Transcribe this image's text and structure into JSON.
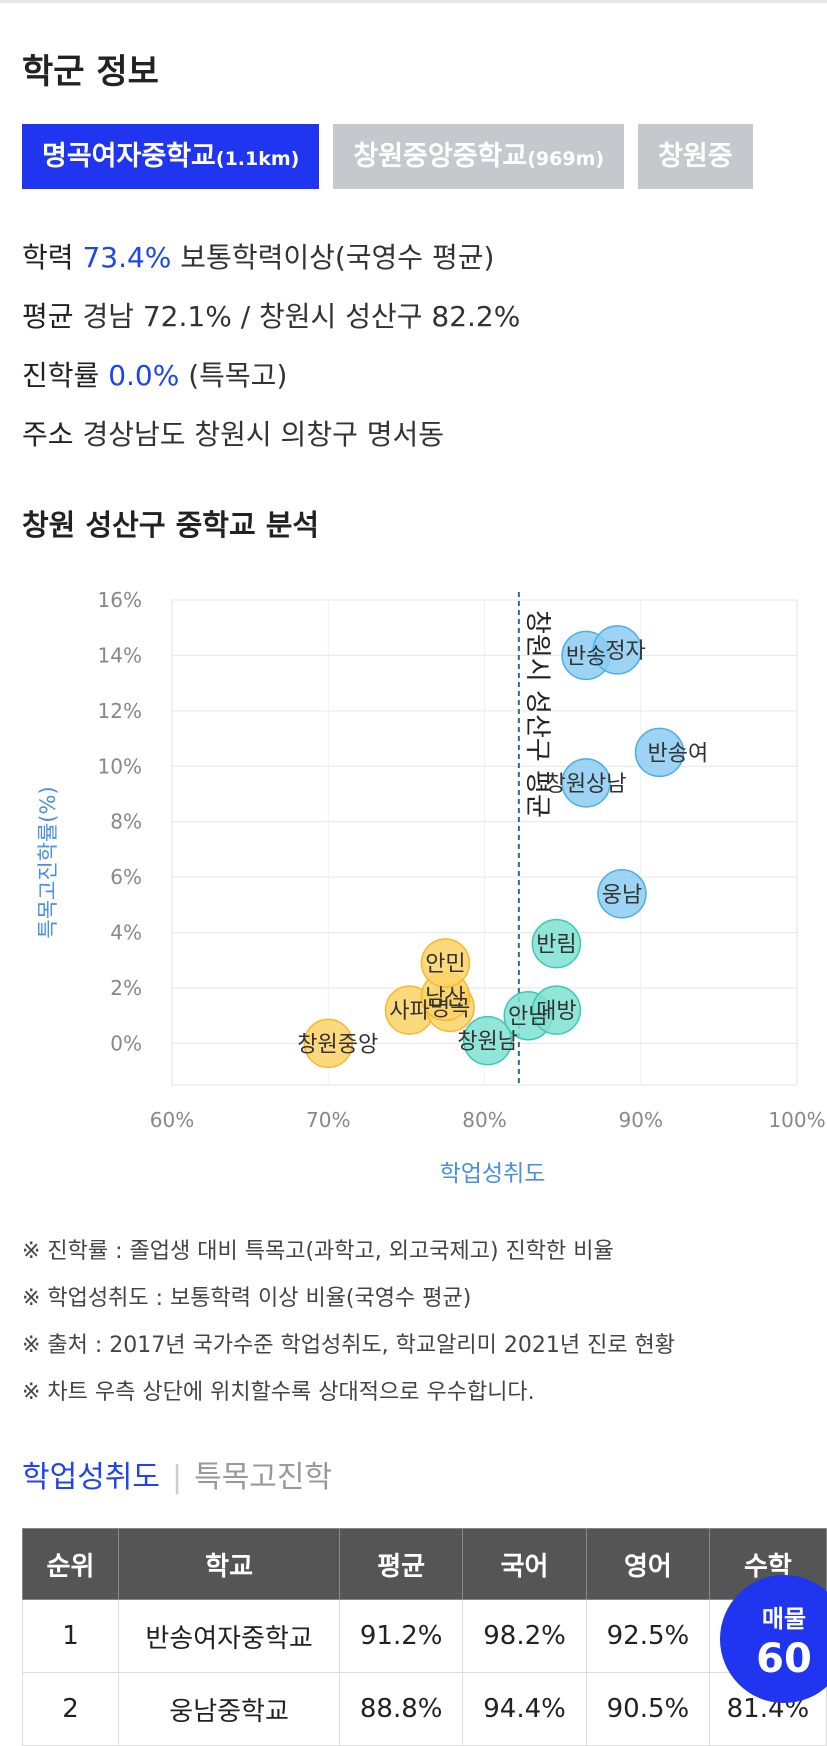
{
  "section_title": "학군 정보",
  "tabs": [
    {
      "name": "명곡여자중학교",
      "dist": "(1.1km)",
      "active": true
    },
    {
      "name": "창원중앙중학교",
      "dist": "(969m)",
      "active": false
    },
    {
      "name": "창원중",
      "dist": "",
      "active": false
    }
  ],
  "info": {
    "academic_label": "학력",
    "academic_value": "73.4%",
    "academic_suffix": "보통학력이상(국영수 평균)",
    "avg_label": "평균",
    "avg_value": "경남 72.1% / 창원시 성산구 82.2%",
    "advance_label": "진학률",
    "advance_value": "0.0%",
    "advance_suffix": "(특목고)",
    "address_label": "주소",
    "address_value": "경상남도 창원시 의창구 명서동"
  },
  "analysis_title": "창원 성산구 중학교 분석",
  "chart_data": {
    "type": "scatter",
    "xlabel": "학업성취도",
    "ylabel": "특목고진학률(%)",
    "xlim": [
      60,
      100
    ],
    "ylim": [
      -1.5,
      16
    ],
    "x_ticks": [
      "60%",
      "70%",
      "80%",
      "90%",
      "100%"
    ],
    "x_tick_values": [
      60,
      70,
      80,
      90,
      100
    ],
    "y_ticks": [
      "16%",
      "14%",
      "12%",
      "10%",
      "8%",
      "6%",
      "4%",
      "2%",
      "0%"
    ],
    "y_tick_values": [
      16,
      14,
      12,
      10,
      8,
      6,
      4,
      2,
      0
    ],
    "reference_line": {
      "x": 82.2,
      "label": "창원시 성산구 평균"
    },
    "grid": true,
    "colors": {
      "below": "#fdd266",
      "near": "#7fe0d2",
      "above": "#8ccbf1",
      "below_stroke": "#f5b82e",
      "near_stroke": "#3cc8b4",
      "above_stroke": "#4aaee8",
      "axis_label": "#4a8fe0"
    },
    "points": [
      {
        "name": "창원중앙",
        "x": 70.0,
        "y": 0.0,
        "group": "below",
        "label_side": "left"
      },
      {
        "name": "사파",
        "x": 75.2,
        "y": 1.2,
        "group": "below",
        "label_side": "center"
      },
      {
        "name": "명곡",
        "x": 77.8,
        "y": 1.3,
        "group": "below",
        "label_side": "center"
      },
      {
        "name": "남산",
        "x": 77.5,
        "y": 1.7,
        "group": "below",
        "label_side": "center"
      },
      {
        "name": "안민",
        "x": 77.5,
        "y": 2.9,
        "group": "below",
        "label_side": "center"
      },
      {
        "name": "창원남",
        "x": 80.2,
        "y": 0.1,
        "group": "near",
        "label_side": "center"
      },
      {
        "name": "안남",
        "x": 82.8,
        "y": 1.0,
        "group": "near",
        "label_side": "center"
      },
      {
        "name": "대방",
        "x": 84.6,
        "y": 1.2,
        "group": "near",
        "label_side": "center"
      },
      {
        "name": "반림",
        "x": 84.6,
        "y": 3.6,
        "group": "near",
        "label_side": "center"
      },
      {
        "name": "웅남",
        "x": 88.8,
        "y": 5.4,
        "group": "above",
        "label_side": "center"
      },
      {
        "name": "창원상남",
        "x": 86.5,
        "y": 9.4,
        "group": "above",
        "label_side": "center"
      },
      {
        "name": "반송여",
        "x": 91.2,
        "y": 10.5,
        "group": "above",
        "label_side": "right"
      },
      {
        "name": "반송",
        "x": 86.5,
        "y": 14.0,
        "group": "above",
        "label_side": "center"
      },
      {
        "name": "정자",
        "x": 88.5,
        "y": 14.2,
        "group": "above",
        "label_side": "right"
      }
    ]
  },
  "notes": [
    "※ 진학률 : 졸업생 대비 특목고(과학고, 외고국제고) 진학한 비율",
    "※ 학업성취도 : 보통학력 이상 비율(국영수 평균)",
    "※ 출처 : 2017년 국가수준 학업성취도, 학교알리미 2021년 진로 현황",
    "※ 차트 우측 상단에 위치할수록 상대적으로 우수합니다."
  ],
  "subtabs": {
    "active": "학업성취도",
    "inactive": "특목고진학"
  },
  "table": {
    "headers": [
      "순위",
      "학교",
      "평균",
      "국어",
      "영어",
      "수학"
    ],
    "rows": [
      [
        "1",
        "반송여자중학교",
        "91.2%",
        "98.2%",
        "92.5%",
        ""
      ],
      [
        "2",
        "웅남중학교",
        "88.8%",
        "94.4%",
        "90.5%",
        "81.4%"
      ]
    ]
  },
  "badge": {
    "label": "매물",
    "count": "60"
  }
}
